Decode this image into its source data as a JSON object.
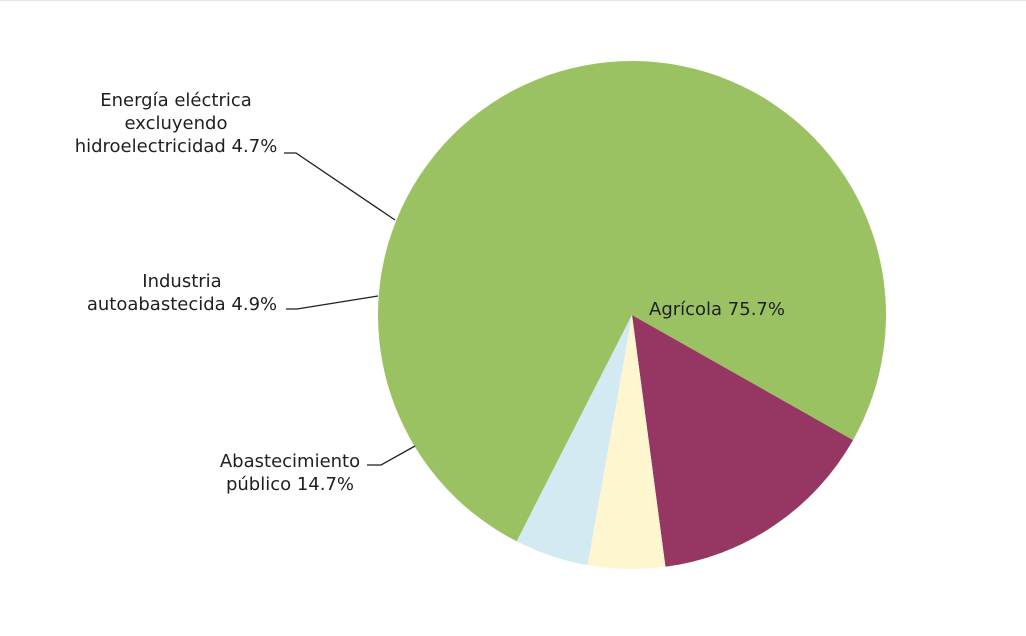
{
  "chart_data": {
    "type": "pie",
    "title": "",
    "slices": [
      {
        "label_lines": [
          "Agrícola 75.7%"
        ],
        "category": "Agrícola",
        "value": 75.7,
        "color": "#9bc262"
      },
      {
        "label_lines": [
          "Abastecimiento",
          "público 14.7%"
        ],
        "category": "Abastecimiento público",
        "value": 14.7,
        "color": "#953663"
      },
      {
        "label_lines": [
          "Industria",
          "autoabastecida 4.9%"
        ],
        "category": "Industria autoabastecida",
        "value": 4.9,
        "color": "#fdf6cf"
      },
      {
        "label_lines": [
          "Energía eléctrica",
          "excluyendo",
          "hidroelectricidad 4.7%"
        ],
        "category": "Energía eléctrica excluyendo hidroelectricidad",
        "value": 4.7,
        "color": "#d4eaf3"
      }
    ]
  }
}
